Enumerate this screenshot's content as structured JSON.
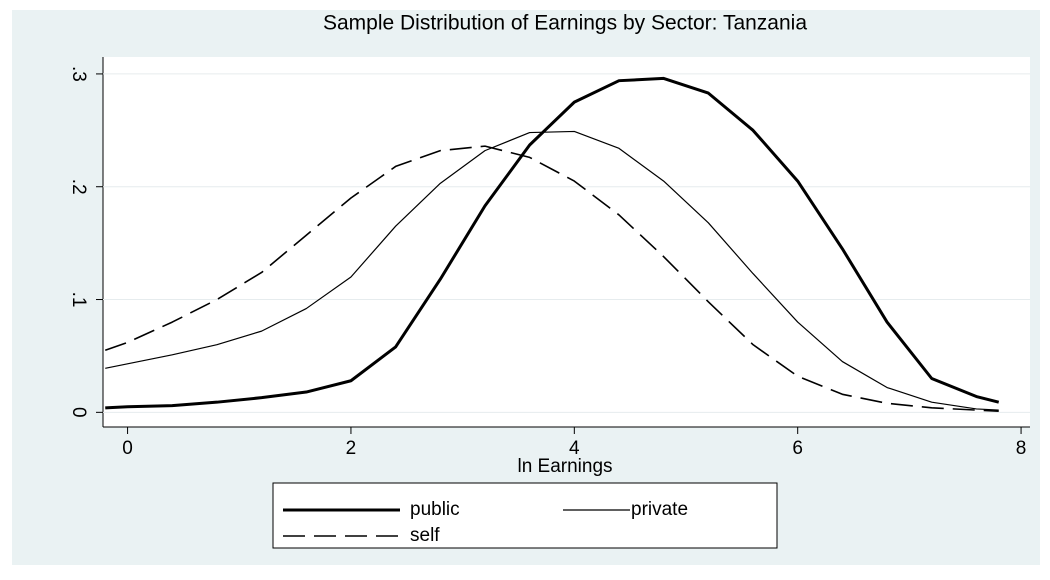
{
  "chart_data": {
    "type": "line",
    "title": "Sample Distribution of Earnings by Sector: Tanzania",
    "xlabel": "ln Earnings",
    "x": [
      -0.2,
      0,
      0.4,
      0.8,
      1.2,
      1.6,
      2.0,
      2.4,
      2.8,
      3.2,
      3.6,
      4.0,
      4.4,
      4.8,
      5.2,
      5.6,
      6.0,
      6.4,
      6.8,
      7.2,
      7.6,
      7.8
    ],
    "series": [
      {
        "name": "public",
        "color": "#000000",
        "line_width": 3,
        "dash": "none",
        "values": [
          0.004,
          0.005,
          0.006,
          0.009,
          0.013,
          0.018,
          0.028,
          0.058,
          0.118,
          0.183,
          0.237,
          0.275,
          0.294,
          0.296,
          0.283,
          0.25,
          0.205,
          0.145,
          0.08,
          0.03,
          0.014,
          0.009
        ]
      },
      {
        "name": "private",
        "color": "#000000",
        "line_width": 1.2,
        "dash": "none",
        "values": [
          0.039,
          0.043,
          0.051,
          0.06,
          0.072,
          0.092,
          0.12,
          0.165,
          0.203,
          0.232,
          0.248,
          0.249,
          0.234,
          0.205,
          0.168,
          0.123,
          0.08,
          0.045,
          0.022,
          0.009,
          0.003,
          0.002
        ]
      },
      {
        "name": "self",
        "color": "#000000",
        "line_width": 1.6,
        "dash": "22 9",
        "values": [
          0.055,
          0.062,
          0.08,
          0.1,
          0.124,
          0.157,
          0.19,
          0.218,
          0.232,
          0.236,
          0.226,
          0.205,
          0.175,
          0.138,
          0.098,
          0.06,
          0.032,
          0.016,
          0.008,
          0.004,
          0.002,
          0.001
        ]
      }
    ],
    "xlim": [
      -0.22,
      8.08
    ],
    "xticks": [
      0,
      2,
      4,
      6,
      8
    ],
    "ylim": [
      -0.013,
      0.315
    ],
    "yticks": [
      0,
      {
        "value": 0.1,
        "label": ".1"
      },
      {
        "value": 0.2,
        "label": ".2"
      },
      {
        "value": 0.3,
        "label": ".3"
      }
    ],
    "grid": true,
    "legend": "bottom"
  }
}
